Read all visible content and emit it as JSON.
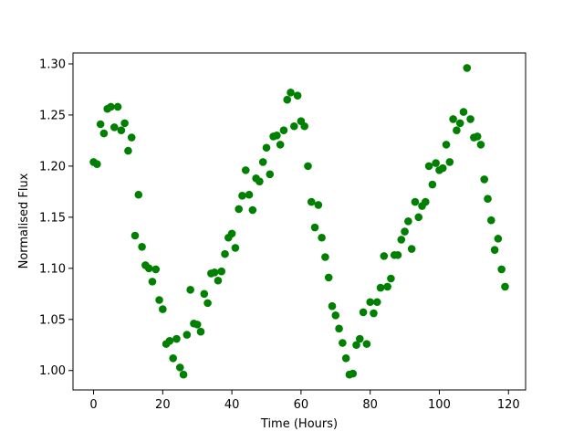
{
  "chart_data": {
    "type": "scatter",
    "xlabel": "Time (Hours)",
    "ylabel": "Normalised Flux",
    "color": "#008000",
    "grid": false,
    "x": [
      0,
      1,
      2,
      3,
      4,
      5,
      6,
      7,
      8,
      9,
      10,
      11,
      12,
      13,
      14,
      15,
      16,
      17,
      18,
      19,
      20,
      21,
      22,
      23,
      24,
      25,
      26,
      27,
      28,
      29,
      30,
      31,
      32,
      33,
      34,
      35,
      36,
      37,
      38,
      39,
      40,
      41,
      42,
      43,
      44,
      45,
      46,
      47,
      48,
      49,
      50,
      51,
      52,
      53,
      54,
      55,
      56,
      57,
      58,
      59,
      60,
      61,
      62,
      63,
      64,
      65,
      66,
      67,
      68,
      69,
      70,
      71,
      72,
      73,
      74,
      75,
      76,
      77,
      78,
      79,
      80,
      81,
      82,
      83,
      84,
      85,
      86,
      87,
      88,
      89,
      90,
      91,
      92,
      93,
      94,
      95,
      96,
      97,
      98,
      99,
      100,
      101,
      102,
      103,
      104,
      105,
      106,
      107,
      108,
      109,
      110,
      111,
      112,
      113,
      114,
      115,
      116,
      117,
      118,
      119
    ],
    "values": [
      1.204,
      1.202,
      1.241,
      1.232,
      1.256,
      1.258,
      1.238,
      1.258,
      1.235,
      1.242,
      1.215,
      1.228,
      1.132,
      1.172,
      1.121,
      1.103,
      1.1,
      1.087,
      1.099,
      1.069,
      1.06,
      1.026,
      1.029,
      1.012,
      1.031,
      1.003,
      0.996,
      1.035,
      1.079,
      1.046,
      1.045,
      1.038,
      1.075,
      1.066,
      1.095,
      1.096,
      1.088,
      1.097,
      1.114,
      1.13,
      1.134,
      1.12,
      1.158,
      1.171,
      1.196,
      1.172,
      1.157,
      1.188,
      1.185,
      1.204,
      1.218,
      1.192,
      1.229,
      1.23,
      1.221,
      1.235,
      1.265,
      1.272,
      1.239,
      1.269,
      1.244,
      1.239,
      1.2,
      1.165,
      1.14,
      1.162,
      1.13,
      1.111,
      1.091,
      1.063,
      1.054,
      1.041,
      1.027,
      1.012,
      0.996,
      0.997,
      1.025,
      1.031,
      1.057,
      1.026,
      1.067,
      1.056,
      1.067,
      1.081,
      1.112,
      1.082,
      1.09,
      1.113,
      1.113,
      1.128,
      1.136,
      1.146,
      1.119,
      1.165,
      1.15,
      1.161,
      1.165,
      1.2,
      1.182,
      1.203,
      1.196,
      1.198,
      1.221,
      1.204,
      1.246,
      1.235,
      1.242,
      1.253,
      1.296,
      1.246,
      1.228,
      1.229,
      1.221,
      1.187,
      1.168,
      1.147,
      1.118,
      1.129,
      1.099,
      1.082
    ],
    "xlim": [
      -5.95,
      124.95
    ],
    "xticks": [
      0,
      20,
      40,
      60,
      80,
      100,
      120
    ],
    "ylim": [
      0.981,
      1.3107
    ],
    "yticks": [
      {
        "value": 1,
        "label": "1.00"
      },
      1.05,
      {
        "value": 1.1,
        "label": "1.10"
      },
      1.15,
      {
        "value": 1.2,
        "label": "1.20"
      },
      1.25,
      {
        "value": 1.3,
        "label": "1.30"
      }
    ]
  }
}
